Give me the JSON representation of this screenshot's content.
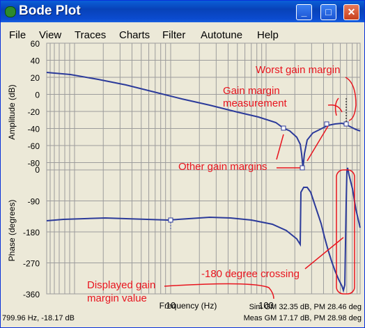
{
  "window": {
    "title": "Bode Plot",
    "buttons": [
      "_",
      "□",
      "✕"
    ]
  },
  "menu": [
    "File",
    "View",
    "Traces",
    "Charts",
    "Filter",
    "Autotune",
    "Help"
  ],
  "amplitude_axis": {
    "label": "Amplitude (dB)",
    "ticks": [
      "60",
      "40",
      "20",
      "0",
      "-20",
      "-40",
      "-60",
      "-80"
    ]
  },
  "phase_axis": {
    "label": "Phase (degrees)",
    "ticks": [
      "0",
      "-90",
      "-180",
      "-270",
      "-360"
    ]
  },
  "frequency_axis": {
    "label": "Frequency (Hz)",
    "ticks": [
      "10",
      "100"
    ]
  },
  "annotations": {
    "worst_gain_margin": "Worst gain margin",
    "gain_margin_measurement_1": "Gain margin",
    "gain_margin_measurement_2": "measurement",
    "other_gain_margins": "Other gain margins",
    "crossing_180": "-180 degree crossing",
    "displayed_value_1": "Displayed gain",
    "displayed_value_2": "margin value"
  },
  "status": {
    "cursor": "799.96 Hz, -18.17 dB",
    "sim": "Sim GM 32.35 dB, PM 28.46 deg",
    "meas": "Meas GM 17.17 dB, PM 28.98 deg"
  },
  "colors": {
    "trace": "#2b3a9a",
    "annotation": "#e8141e",
    "plot_bg": "#ece9d8",
    "grid": "#9c9c9c"
  }
}
